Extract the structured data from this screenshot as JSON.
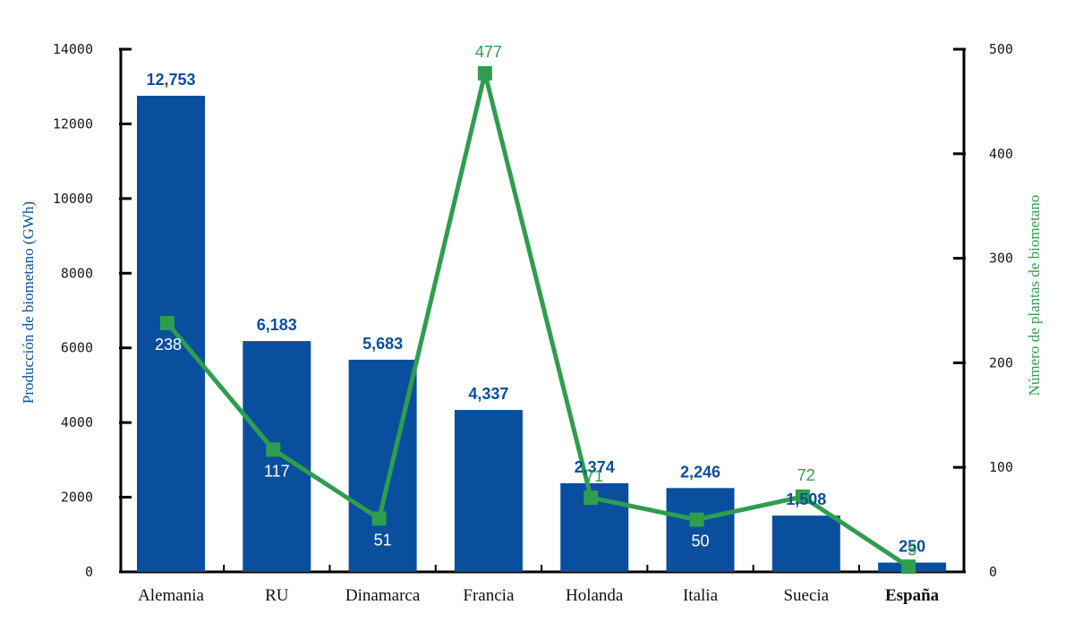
{
  "chart_data": {
    "type": "bar",
    "categories": [
      "Alemania",
      "RU",
      "Dinamarca",
      "Francia",
      "Holanda",
      "Italia",
      "Suecia",
      "España"
    ],
    "highlight_category": "España",
    "series": [
      {
        "type": "bar",
        "axis": "left",
        "values": [
          12753,
          6183,
          5683,
          4337,
          2374,
          2246,
          1508,
          250
        ],
        "value_labels": [
          "12,753",
          "6,183",
          "5,683",
          "4,337",
          "2,374",
          "2,246",
          "1,508",
          "250"
        ],
        "color": "#0a4f9e"
      },
      {
        "type": "line",
        "axis": "right",
        "marker": "square",
        "values": [
          238,
          117,
          51,
          477,
          71,
          50,
          72,
          5
        ],
        "value_labels": [
          "238",
          "117",
          "51",
          "477",
          "71",
          "50",
          "72",
          "5"
        ],
        "color": "#2e9e4e"
      }
    ],
    "y_left": {
      "label": "Producción de biometano (GWh)",
      "ylim": [
        0,
        14000
      ],
      "ticks": [
        "0",
        "2000",
        "4000",
        "6000",
        "8000",
        "10000",
        "12000",
        "14000"
      ],
      "color": "#0a4f9e"
    },
    "y_right": {
      "label": "Número de plantas de biometano",
      "ylim": [
        0,
        500
      ],
      "ticks": [
        "0",
        "100",
        "200",
        "300",
        "400",
        "500"
      ],
      "color": "#2e9e4e"
    },
    "grid": false,
    "legend": "none",
    "label_colors": {
      "bar_above": "#0a4f9e",
      "point_inside_bar": "#ffffff",
      "point_outside_bar": "#2e9e4e"
    }
  }
}
